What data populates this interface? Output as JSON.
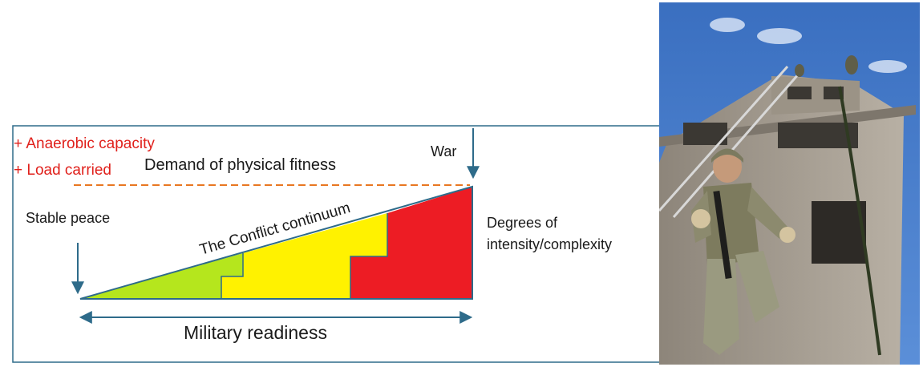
{
  "diagram": {
    "modifiers": [
      "+ Anaerobic capacity",
      "+ Load carried"
    ],
    "demand_label": "Demand of physical fitness",
    "war_label": "War",
    "stable_peace_label": "Stable peace",
    "continuum_label": "The Conflict continuum",
    "degrees_label": [
      "Degrees of",
      "intensity/complexity"
    ],
    "readiness_label": "Military readiness",
    "colors": {
      "frame": "#2e6b8a",
      "modifier_text": "#e0201b",
      "dashed_line": "#e87722",
      "green_zone": "#b5e61d",
      "yellow_zone": "#fff200",
      "red_zone": "#ed1c24",
      "outline": "#2e6b8a"
    }
  },
  "photo": {
    "subject": "soldier rappelling down training tower",
    "colors": {
      "sky": "#3e78c8",
      "tower": "#a89f94",
      "uniform": "#8c8a6e"
    }
  }
}
